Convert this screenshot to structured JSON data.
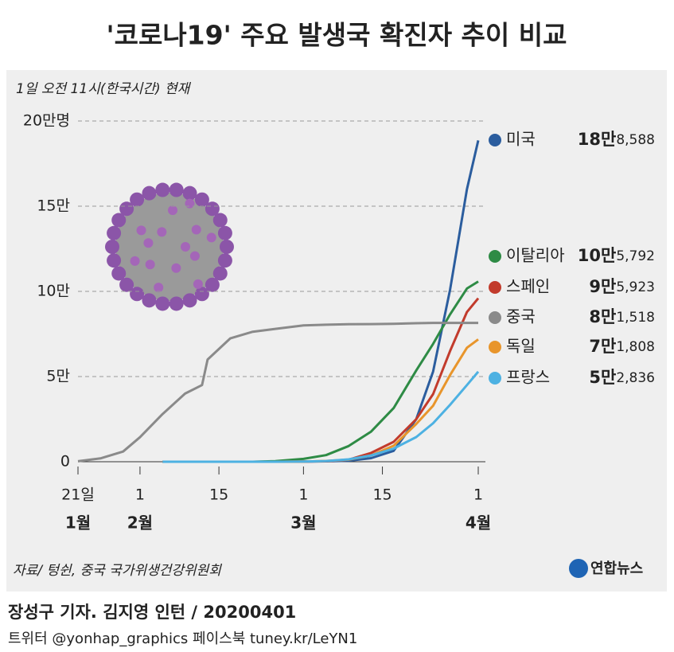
{
  "chart_data": {
    "type": "line",
    "title": "'코로나19' 주요 발생국 확진자 추이 비교",
    "subtitle": "1일 오전 11시(한국시간) 현재",
    "x": [
      "01-21",
      "01-25",
      "01-29",
      "02-01",
      "02-05",
      "02-09",
      "02-12",
      "02-13",
      "02-17",
      "02-21",
      "02-25",
      "03-01",
      "03-05",
      "03-09",
      "03-13",
      "03-17",
      "03-21",
      "03-24",
      "03-27",
      "03-30",
      "04-01"
    ],
    "xticks": [
      {
        "value": "01-21",
        "label": "21일"
      },
      {
        "value": "02-01",
        "label": "1"
      },
      {
        "value": "02-15",
        "label": "15"
      },
      {
        "value": "03-01",
        "label": "1"
      },
      {
        "value": "03-15",
        "label": "15"
      },
      {
        "value": "04-01",
        "label": "1"
      }
    ],
    "x_month_labels": [
      {
        "value": "01-21",
        "label": "1월"
      },
      {
        "value": "02-01",
        "label": "2월"
      },
      {
        "value": "03-01",
        "label": "3월"
      },
      {
        "value": "04-01",
        "label": "4월"
      }
    ],
    "ylim": [
      0,
      200000
    ],
    "yticks": [
      {
        "value": 0,
        "label": "0"
      },
      {
        "value": 50000,
        "label": "5만"
      },
      {
        "value": 100000,
        "label": "10만"
      },
      {
        "value": 150000,
        "label": "15만"
      },
      {
        "value": 200000,
        "label": "20만명"
      }
    ],
    "grid": true,
    "series": [
      {
        "name": "미국",
        "color": "#2b5d9e",
        "values": [
          null,
          null,
          null,
          null,
          12,
          12,
          13,
          14,
          15,
          15,
          53,
          70,
          220,
          550,
          2100,
          6400,
          25000,
          53000,
          101000,
          160000,
          188588
        ],
        "value_labels": [
          null,
          null,
          null,
          null,
          null,
          null,
          null,
          null,
          null,
          null,
          null,
          null,
          null,
          null,
          null,
          null,
          null,
          null,
          null,
          null,
          "18만8,588"
        ]
      },
      {
        "name": "이탈리아",
        "color": "#2e8b45",
        "values": [
          null,
          null,
          null,
          null,
          2,
          3,
          3,
          3,
          3,
          20,
          320,
          1700,
          3900,
          9200,
          17700,
          31500,
          53600,
          69200,
          86500,
          101700,
          105792
        ],
        "value_labels": [
          null,
          null,
          null,
          null,
          null,
          null,
          null,
          null,
          null,
          null,
          null,
          null,
          null,
          null,
          null,
          null,
          null,
          null,
          null,
          null,
          "10만5,792"
        ]
      },
      {
        "name": "스페인",
        "color": "#c23b2c",
        "values": [
          null,
          null,
          null,
          null,
          1,
          2,
          2,
          2,
          2,
          2,
          6,
          85,
          280,
          1200,
          5200,
          11700,
          25000,
          39700,
          65000,
          87900,
          95923
        ],
        "value_labels": [
          null,
          null,
          null,
          null,
          null,
          null,
          null,
          null,
          null,
          null,
          null,
          null,
          null,
          null,
          null,
          null,
          null,
          null,
          null,
          null,
          "9만5,923"
        ]
      },
      {
        "name": "중국",
        "color": "#8a8a8a",
        "values": [
          300,
          1975,
          6000,
          14400,
          28000,
          40000,
          45000,
          60000,
          72400,
          76300,
          78000,
          80000,
          80400,
          80750,
          80800,
          81000,
          81300,
          81500,
          81500,
          81500,
          81518
        ],
        "value_labels": [
          null,
          null,
          null,
          null,
          null,
          null,
          null,
          null,
          null,
          null,
          null,
          null,
          null,
          null,
          null,
          null,
          null,
          null,
          null,
          null,
          "8만1,518"
        ]
      },
      {
        "name": "독일",
        "color": "#e8952b",
        "values": [
          null,
          null,
          null,
          null,
          12,
          14,
          16,
          16,
          16,
          16,
          18,
          130,
          480,
          1200,
          3700,
          9400,
          22200,
          32900,
          50900,
          66900,
          71808
        ],
        "value_labels": [
          null,
          null,
          null,
          null,
          null,
          null,
          null,
          null,
          null,
          null,
          null,
          null,
          null,
          null,
          null,
          null,
          null,
          null,
          null,
          null,
          "7만1,808"
        ]
      },
      {
        "name": "프랑스",
        "color": "#4db1e2",
        "values": [
          null,
          null,
          null,
          null,
          6,
          11,
          11,
          11,
          12,
          12,
          14,
          130,
          420,
          1400,
          3700,
          7700,
          14500,
          22600,
          33400,
          45000,
          52836
        ],
        "value_labels": [
          null,
          null,
          null,
          null,
          null,
          null,
          null,
          null,
          null,
          null,
          null,
          null,
          null,
          null,
          null,
          null,
          null,
          null,
          null,
          null,
          "5만2,836"
        ]
      }
    ],
    "source": "자료/ 텅쉰, 중국 국가위생건강위원회",
    "logo": "연합뉴스",
    "credit": "장성구 기자. 김지영 인턴 / 20200401",
    "social": "트위터 @yonhap_graphics  페이스북 tuney.kr/LeYN1"
  }
}
